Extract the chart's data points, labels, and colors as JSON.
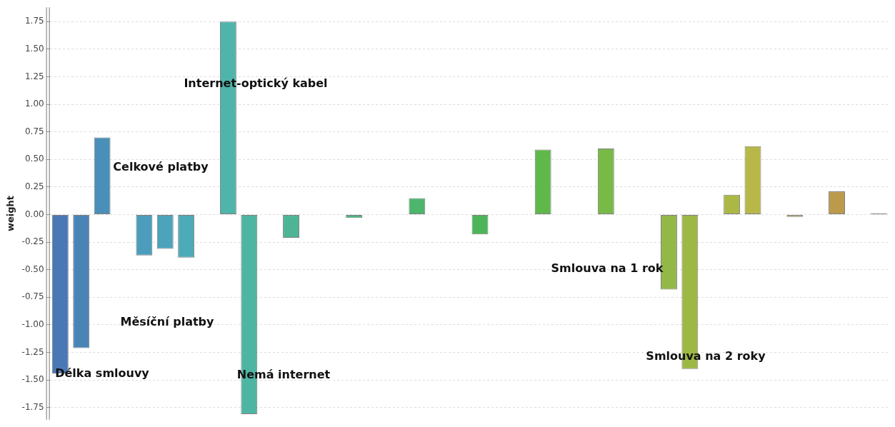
{
  "chart_data": {
    "type": "bar",
    "ylabel": "weight",
    "categories": [
      null,
      null,
      null,
      null,
      null,
      null,
      null,
      null,
      null,
      null,
      null,
      null,
      null,
      null,
      null,
      null,
      null,
      null,
      null,
      null,
      null,
      null,
      null,
      null,
      null,
      null,
      null,
      null,
      null,
      null,
      null,
      null,
      null,
      null,
      null,
      null,
      null,
      null,
      null,
      null
    ],
    "values": [
      -1.44,
      -1.21,
      0.7,
      0,
      -0.37,
      -0.31,
      -0.39,
      0,
      1.75,
      -1.81,
      0,
      -0.21,
      0,
      0,
      -0.03,
      0,
      0,
      0.15,
      0,
      0,
      -0.18,
      0,
      0,
      0.59,
      0,
      0,
      0.6,
      0,
      0,
      -0.68,
      -1.4,
      0,
      0.18,
      0.62,
      0,
      -0.02,
      0,
      0.21,
      0,
      0.01
    ],
    "colors": [
      "#4a78b5",
      "#4a84b7",
      "#4a8fb9",
      "#4b97ba",
      "#4c9dbb",
      "#4ca3bb",
      "#4caab9",
      "#4db0b3",
      "#4fb5ab",
      "#4fb5a3",
      "#4eb59c",
      "#4db595",
      "#4db58e",
      "#4db588",
      "#4db582",
      "#4db57b",
      "#4db574",
      "#4db56c",
      "#4db565",
      "#4cb55f",
      "#4cb55a",
      "#50b651",
      "#56b74b",
      "#60b84a",
      "#68b949",
      "#70ba48",
      "#78ba48",
      "#82b948",
      "#8ab948",
      "#94b848",
      "#9db845",
      "#a6b846",
      "#acb845",
      "#b8b84a",
      "#bcb24b",
      "#bcaa4c",
      "#bca24c",
      "#bc9a4c",
      "#b0976a",
      "#808080"
    ],
    "ylim": [
      -1.86,
      1.88
    ],
    "yticks": [
      {
        "value": -1.75,
        "label": "-1.75"
      },
      {
        "value": -1.5,
        "label": "-1.50"
      },
      {
        "value": -1.25,
        "label": "-1.25"
      },
      {
        "value": -1,
        "label": "-1.00"
      },
      {
        "value": -0.75,
        "label": "-0.75"
      },
      {
        "value": -0.5,
        "label": "-0.50"
      },
      {
        "value": -0.25,
        "label": "-0.25"
      },
      {
        "value": 0,
        "label": "0.00"
      },
      {
        "value": 0.25,
        "label": "0.25"
      },
      {
        "value": 0.5,
        "label": "0.50"
      },
      {
        "value": 0.75,
        "label": "0.75"
      },
      {
        "value": 1,
        "label": "1.00"
      },
      {
        "value": 1.25,
        "label": "1.25"
      },
      {
        "value": 1.5,
        "label": "1.50"
      },
      {
        "value": 1.75,
        "label": "1.75"
      }
    ],
    "grid": "y",
    "legend": false,
    "tick_labels": "y",
    "annotations": [
      "Délka smlouvy",
      "Měsíční platby",
      "Celkové platby",
      "Internet-optický kabel",
      "Nemá internet",
      "Smlouva na 1 rok",
      "Smlouva na 2 roky"
    ]
  }
}
